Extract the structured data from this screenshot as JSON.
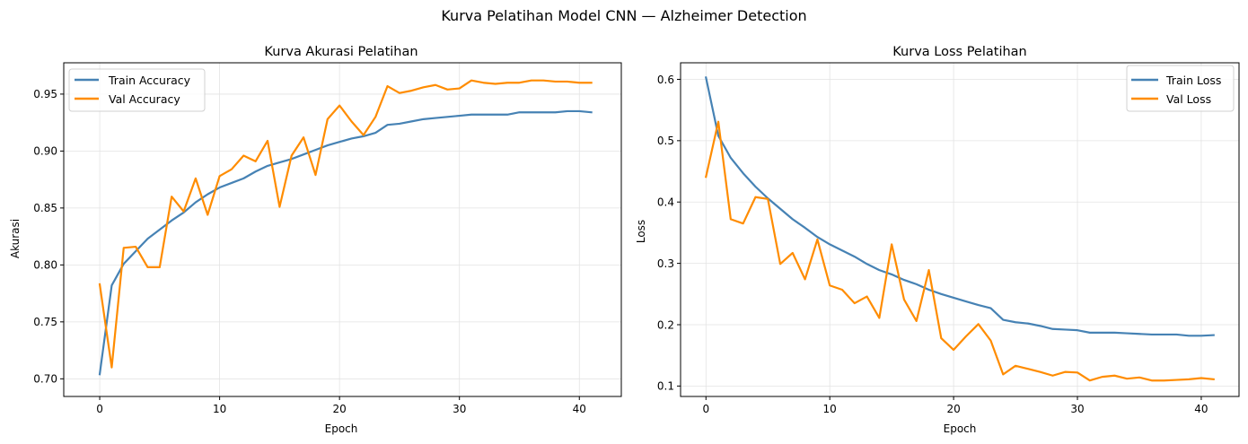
{
  "figure": {
    "suptitle": "Kurva Pelatihan Model CNN — Alzheimer Detection"
  },
  "colors": {
    "train": "#4682b4",
    "val": "#ff8c00",
    "grid": "#e3e3e3",
    "axis": "#000000"
  },
  "chart_data": [
    {
      "type": "line",
      "title": "Kurva Akurasi Pelatihan",
      "xlabel": "Epoch",
      "ylabel": "Akurasi",
      "xlim": [
        -3,
        43.5
      ],
      "ylim": [
        0.6845,
        0.9775
      ],
      "xticks": [
        0,
        10,
        20,
        30,
        40
      ],
      "xtick_labels": [
        "0",
        "10",
        "20",
        "30",
        "40"
      ],
      "yticks": [
        0.7,
        0.75,
        0.8,
        0.85,
        0.9,
        0.95
      ],
      "ytick_labels": [
        "0.70",
        "0.75",
        "0.80",
        "0.85",
        "0.90",
        "0.95"
      ],
      "grid": true,
      "legend_position": "upper-left",
      "x": [
        0,
        1,
        2,
        3,
        4,
        5,
        6,
        7,
        8,
        9,
        10,
        11,
        12,
        13,
        14,
        15,
        16,
        17,
        18,
        19,
        20,
        21,
        22,
        23,
        24,
        25,
        26,
        27,
        28,
        29,
        30,
        31,
        32,
        33,
        34,
        35,
        36,
        37,
        38,
        39,
        40,
        41
      ],
      "series": [
        {
          "name": "Train Accuracy",
          "color": "#4682b4",
          "values": [
            0.704,
            0.782,
            0.801,
            0.812,
            0.823,
            0.831,
            0.839,
            0.846,
            0.855,
            0.862,
            0.868,
            0.872,
            0.876,
            0.882,
            0.887,
            0.89,
            0.893,
            0.897,
            0.901,
            0.905,
            0.908,
            0.911,
            0.913,
            0.916,
            0.923,
            0.924,
            0.926,
            0.928,
            0.929,
            0.93,
            0.931,
            0.932,
            0.932,
            0.932,
            0.932,
            0.934,
            0.934,
            0.934,
            0.934,
            0.935,
            0.935,
            0.934
          ]
        },
        {
          "name": "Val Accuracy",
          "color": "#ff8c00",
          "values": [
            0.783,
            0.71,
            0.815,
            0.816,
            0.798,
            0.798,
            0.86,
            0.847,
            0.876,
            0.844,
            0.878,
            0.884,
            0.896,
            0.891,
            0.909,
            0.851,
            0.896,
            0.912,
            0.879,
            0.928,
            0.94,
            0.926,
            0.914,
            0.93,
            0.957,
            0.951,
            0.953,
            0.956,
            0.958,
            0.954,
            0.955,
            0.962,
            0.96,
            0.959,
            0.96,
            0.96,
            0.962,
            0.962,
            0.961,
            0.961,
            0.96,
            0.96
          ]
        }
      ]
    },
    {
      "type": "line",
      "title": "Kurva Loss Pelatihan",
      "xlabel": "Epoch",
      "ylabel": "Loss",
      "xlim": [
        -2.05,
        43.05
      ],
      "ylim": [
        0.083,
        0.627
      ],
      "xticks": [
        0,
        10,
        20,
        30,
        40
      ],
      "xtick_labels": [
        "0",
        "10",
        "20",
        "30",
        "40"
      ],
      "yticks": [
        0.1,
        0.2,
        0.3,
        0.4,
        0.5,
        0.6
      ],
      "ytick_labels": [
        "0.1",
        "0.2",
        "0.3",
        "0.4",
        "0.5",
        "0.6"
      ],
      "grid": true,
      "legend_position": "upper-right",
      "x": [
        0,
        1,
        2,
        3,
        4,
        5,
        6,
        7,
        8,
        9,
        10,
        11,
        12,
        13,
        14,
        15,
        16,
        17,
        18,
        19,
        20,
        21,
        22,
        23,
        24,
        25,
        26,
        27,
        28,
        29,
        30,
        31,
        32,
        33,
        34,
        35,
        36,
        37,
        38,
        39,
        40,
        41
      ],
      "series": [
        {
          "name": "Train Loss",
          "color": "#4682b4",
          "values": [
            0.603,
            0.508,
            0.472,
            0.447,
            0.425,
            0.406,
            0.389,
            0.372,
            0.358,
            0.343,
            0.331,
            0.321,
            0.311,
            0.299,
            0.289,
            0.282,
            0.273,
            0.266,
            0.257,
            0.25,
            0.244,
            0.238,
            0.232,
            0.227,
            0.208,
            0.204,
            0.202,
            0.198,
            0.193,
            0.192,
            0.191,
            0.187,
            0.187,
            0.187,
            0.186,
            0.185,
            0.184,
            0.184,
            0.184,
            0.182,
            0.182,
            0.183
          ]
        },
        {
          "name": "Val Loss",
          "color": "#ff8c00",
          "values": [
            0.441,
            0.531,
            0.372,
            0.365,
            0.408,
            0.405,
            0.299,
            0.317,
            0.274,
            0.339,
            0.264,
            0.257,
            0.235,
            0.246,
            0.211,
            0.331,
            0.241,
            0.206,
            0.289,
            0.178,
            0.159,
            0.181,
            0.201,
            0.174,
            0.119,
            0.133,
            0.128,
            0.123,
            0.117,
            0.123,
            0.122,
            0.109,
            0.115,
            0.117,
            0.112,
            0.114,
            0.109,
            0.109,
            0.11,
            0.111,
            0.113,
            0.111
          ]
        }
      ]
    }
  ]
}
